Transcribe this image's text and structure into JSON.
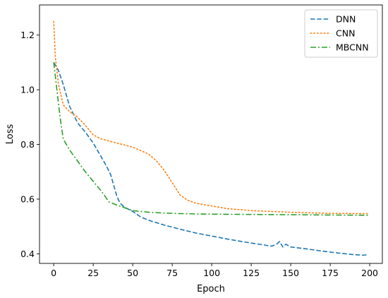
{
  "chart_data": {
    "type": "line",
    "xlabel": "Epoch",
    "ylabel": "Loss",
    "xlim": [
      -9,
      208
    ],
    "ylim": [
      0.365,
      1.31
    ],
    "x_ticks": [
      0,
      25,
      50,
      75,
      100,
      125,
      150,
      175,
      200
    ],
    "y_ticks": [
      0.4,
      0.6,
      0.8,
      1.0,
      1.2
    ],
    "grid": false,
    "legend_position": "top-right",
    "series": [
      {
        "name": "DNN",
        "color": "#1f77b4",
        "dash": "dashed",
        "x": [
          0,
          3,
          6,
          10,
          15,
          20,
          25,
          30,
          33,
          36,
          38,
          40,
          42,
          45,
          50,
          55,
          60,
          70,
          80,
          90,
          100,
          110,
          120,
          130,
          138,
          141,
          143,
          145,
          147,
          150,
          160,
          170,
          180,
          190,
          196,
          199
        ],
        "y": [
          1.1,
          1.07,
          1.02,
          0.94,
          0.88,
          0.845,
          0.805,
          0.755,
          0.725,
          0.69,
          0.65,
          0.61,
          0.585,
          0.57,
          0.555,
          0.535,
          0.523,
          0.505,
          0.49,
          0.476,
          0.465,
          0.454,
          0.444,
          0.435,
          0.428,
          0.435,
          0.445,
          0.425,
          0.435,
          0.425,
          0.418,
          0.41,
          0.403,
          0.397,
          0.395,
          0.397
        ]
      },
      {
        "name": "CNN",
        "color": "#ff7f0e",
        "dash": "dotted",
        "x": [
          0,
          1,
          3,
          6,
          10,
          15,
          20,
          25,
          30,
          40,
          50,
          60,
          65,
          70,
          75,
          80,
          85,
          90,
          100,
          110,
          125,
          150,
          175,
          199
        ],
        "y": [
          1.25,
          1.12,
          1.02,
          0.945,
          0.92,
          0.9,
          0.87,
          0.835,
          0.82,
          0.805,
          0.79,
          0.765,
          0.74,
          0.705,
          0.66,
          0.615,
          0.595,
          0.585,
          0.575,
          0.565,
          0.558,
          0.552,
          0.548,
          0.547
        ]
      },
      {
        "name": "MBCNN",
        "color": "#2ca02c",
        "dash": "dashdot",
        "x": [
          0,
          2,
          4,
          6,
          10,
          15,
          20,
          25,
          30,
          35,
          40,
          45,
          50,
          60,
          70,
          80,
          100,
          125,
          150,
          175,
          199
        ],
        "y": [
          1.1,
          1.0,
          0.9,
          0.82,
          0.78,
          0.74,
          0.7,
          0.665,
          0.63,
          0.59,
          0.578,
          0.568,
          0.558,
          0.552,
          0.549,
          0.547,
          0.545,
          0.544,
          0.543,
          0.542,
          0.541
        ]
      }
    ]
  }
}
